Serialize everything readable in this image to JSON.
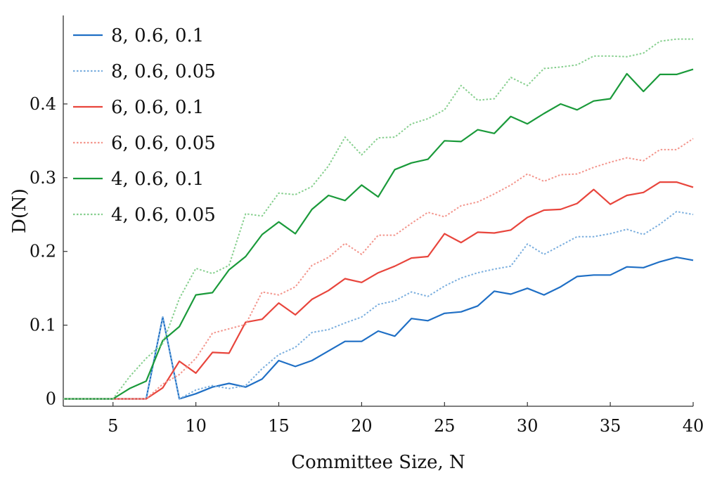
{
  "chart_data": {
    "type": "line",
    "title": "",
    "xlabel": "Committee Size, N",
    "ylabel": "D(N)",
    "xlim": [
      2,
      40
    ],
    "ylim": [
      -0.01,
      0.52
    ],
    "xticks": [
      5,
      10,
      15,
      20,
      25,
      30,
      35,
      40
    ],
    "yticks": [
      0,
      0.1,
      0.2,
      0.3,
      0.4
    ],
    "ytick_labels": [
      "0",
      "0.1",
      "0.2",
      "0.3",
      "0.4"
    ],
    "grid": false,
    "legend_position": "top-left",
    "x": [
      2,
      3,
      4,
      5,
      6,
      7,
      8,
      9,
      10,
      11,
      12,
      13,
      14,
      15,
      16,
      17,
      18,
      19,
      20,
      21,
      22,
      23,
      24,
      25,
      26,
      27,
      28,
      29,
      30,
      31,
      32,
      33,
      34,
      35,
      36,
      37,
      38,
      39,
      40
    ],
    "series": [
      {
        "name": "8, 0.6, 0.1",
        "color": "#1f6fc5",
        "dash": "solid",
        "values": [
          0,
          0,
          0,
          0,
          0,
          0,
          0.111,
          0,
          0.007,
          0.016,
          0.021,
          0.016,
          0.027,
          0.052,
          0.044,
          0.052,
          0.065,
          0.078,
          0.078,
          0.092,
          0.085,
          0.109,
          0.106,
          0.116,
          0.118,
          0.126,
          0.146,
          0.142,
          0.15,
          0.141,
          0.152,
          0.166,
          0.168,
          0.168,
          0.179,
          0.178,
          0.186,
          0.192,
          0.188
        ]
      },
      {
        "name": "8, 0.6, 0.05",
        "color": "#7aaede",
        "dash": "dotted",
        "values": [
          0,
          0,
          0,
          0,
          0,
          0,
          0.111,
          0,
          0.012,
          0.018,
          0.014,
          0.018,
          0.041,
          0.06,
          0.07,
          0.09,
          0.094,
          0.103,
          0.111,
          0.128,
          0.133,
          0.145,
          0.139,
          0.153,
          0.164,
          0.171,
          0.176,
          0.18,
          0.21,
          0.196,
          0.208,
          0.22,
          0.22,
          0.224,
          0.23,
          0.223,
          0.237,
          0.254,
          0.25
        ]
      },
      {
        "name": "6, 0.6, 0.1",
        "color": "#e8453c",
        "dash": "solid",
        "values": [
          0,
          0,
          0,
          0,
          0,
          0,
          0.015,
          0.051,
          0.035,
          0.063,
          0.062,
          0.104,
          0.108,
          0.13,
          0.114,
          0.135,
          0.147,
          0.163,
          0.158,
          0.171,
          0.18,
          0.191,
          0.193,
          0.224,
          0.212,
          0.226,
          0.225,
          0.229,
          0.246,
          0.256,
          0.257,
          0.265,
          0.284,
          0.264,
          0.276,
          0.28,
          0.294,
          0.294,
          0.287
        ]
      },
      {
        "name": "6, 0.6, 0.05",
        "color": "#f3958c",
        "dash": "dotted",
        "values": [
          0,
          0,
          0,
          0,
          0,
          0,
          0.02,
          0.033,
          0.055,
          0.089,
          0.095,
          0.101,
          0.145,
          0.141,
          0.152,
          0.181,
          0.192,
          0.211,
          0.196,
          0.222,
          0.222,
          0.238,
          0.253,
          0.247,
          0.262,
          0.267,
          0.278,
          0.29,
          0.305,
          0.295,
          0.304,
          0.305,
          0.314,
          0.321,
          0.327,
          0.323,
          0.338,
          0.338,
          0.353
        ]
      },
      {
        "name": "4, 0.6, 0.1",
        "color": "#1a9a3a",
        "dash": "solid",
        "values": [
          0,
          0,
          0,
          0,
          0.014,
          0.024,
          0.079,
          0.098,
          0.141,
          0.144,
          0.175,
          0.193,
          0.223,
          0.24,
          0.224,
          0.257,
          0.276,
          0.269,
          0.29,
          0.274,
          0.311,
          0.32,
          0.325,
          0.35,
          0.349,
          0.365,
          0.36,
          0.383,
          0.373,
          0.387,
          0.4,
          0.392,
          0.404,
          0.407,
          0.441,
          0.417,
          0.44,
          0.44,
          0.447
        ]
      },
      {
        "name": "4, 0.6, 0.05",
        "color": "#86cf8e",
        "dash": "dotted",
        "values": [
          0,
          0,
          0,
          0,
          0.03,
          0.055,
          0.075,
          0.136,
          0.177,
          0.17,
          0.181,
          0.251,
          0.248,
          0.279,
          0.277,
          0.288,
          0.316,
          0.355,
          0.331,
          0.354,
          0.355,
          0.373,
          0.38,
          0.392,
          0.425,
          0.405,
          0.407,
          0.436,
          0.425,
          0.448,
          0.45,
          0.453,
          0.465,
          0.465,
          0.464,
          0.469,
          0.485,
          0.488,
          0.488
        ]
      }
    ]
  }
}
